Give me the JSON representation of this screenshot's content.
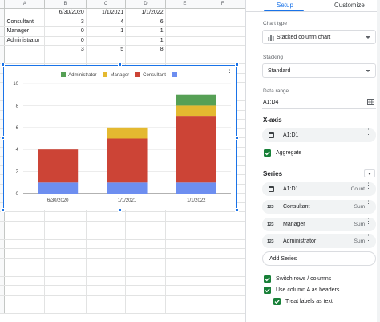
{
  "sheet": {
    "columns": [
      "A",
      "B",
      "C",
      "D",
      "E",
      "F"
    ],
    "rows": [
      [
        "",
        "6/30/2020",
        "1/1/2021",
        "1/1/2022",
        "",
        ""
      ],
      [
        "Consultant",
        "3",
        "4",
        "6",
        "",
        ""
      ],
      [
        "Manager",
        "0",
        "1",
        "1",
        "",
        ""
      ],
      [
        "Administrator",
        "0",
        "",
        "1",
        "",
        ""
      ],
      [
        "",
        "3",
        "5",
        "8",
        "",
        ""
      ]
    ]
  },
  "chart_data": {
    "type": "bar",
    "stacked": true,
    "categories": [
      "6/30/2020",
      "1/1/2021",
      "1/1/2022"
    ],
    "series": [
      {
        "name": "",
        "color": "#6d8ef0",
        "values": [
          1,
          1,
          1
        ]
      },
      {
        "name": "Consultant",
        "color": "#cc4436",
        "values": [
          3,
          4,
          6
        ]
      },
      {
        "name": "Manager",
        "color": "#e4b930",
        "values": [
          0,
          1,
          1
        ]
      },
      {
        "name": "Administrator",
        "color": "#56a055",
        "values": [
          0,
          0,
          1
        ]
      }
    ],
    "legend_order": [
      "Administrator",
      "Manager",
      "Consultant",
      ""
    ],
    "ylim": [
      0,
      10
    ],
    "yticks": [
      "0",
      "2",
      "4",
      "6",
      "8",
      "10"
    ],
    "grid": true,
    "legend_position": "top"
  },
  "panel": {
    "tabs": [
      "Setup",
      "Customize"
    ],
    "chart_type_label": "Chart type",
    "chart_type_value": "Stacked column chart",
    "stacking_label": "Stacking",
    "stacking_value": "Standard",
    "data_range_label": "Data range",
    "data_range_value": "A1:D4",
    "xaxis_title": "X-axis",
    "xaxis_value": "A1:D1",
    "aggregate_label": "Aggregate",
    "series_title": "Series",
    "series": [
      {
        "label": "A1:D1",
        "agg": "Count"
      },
      {
        "label": "Consultant",
        "agg": "Sum"
      },
      {
        "label": "Manager",
        "agg": "Sum"
      },
      {
        "label": "Administrator",
        "agg": "Sum"
      }
    ],
    "add_series_label": "Add Series",
    "switch_label": "Switch rows / columns",
    "headers_label": "Use column A as headers",
    "treat_labels": "Treat labels as text",
    "icon_123": "123"
  }
}
